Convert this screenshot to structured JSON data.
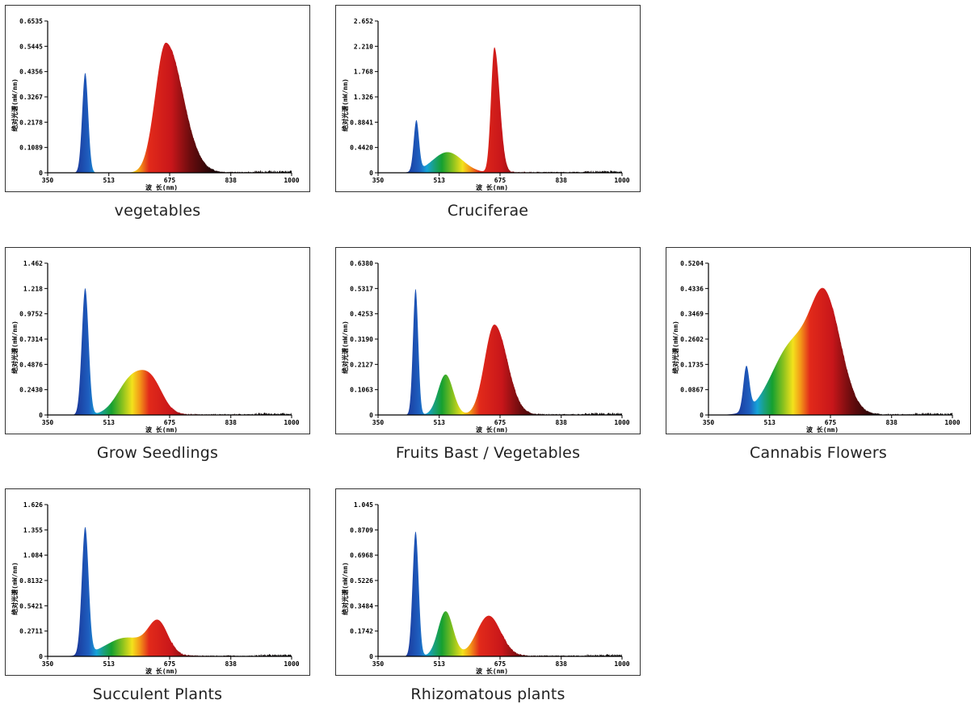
{
  "axes": {
    "xlabel": "波 长(nm)",
    "ylabel": "绝对光谱(mW/nm)",
    "x_ticks": [
      350,
      513,
      675,
      838,
      1000
    ],
    "xlim": [
      350,
      1000
    ]
  },
  "chart_data": [
    {
      "type": "area",
      "title": "vegetables",
      "ylim": [
        0,
        0.6535
      ],
      "y_ticks": [
        "0",
        "0.1089",
        "0.2178",
        "0.3267",
        "0.4356",
        "0.5445",
        "0.6535"
      ],
      "peaks": [
        {
          "x": 450,
          "y": 0.43,
          "w": 8
        },
        {
          "x": 665,
          "y": 0.56,
          "w": 28,
          "wr": 45
        }
      ]
    },
    {
      "type": "area",
      "title": "Cruciferae",
      "ylim": [
        0,
        2.652
      ],
      "y_ticks": [
        "0",
        "0.4420",
        "0.8841",
        "1.326",
        "1.768",
        "2.210",
        "2.652"
      ],
      "peaks": [
        {
          "x": 452,
          "y": 0.88,
          "w": 7
        },
        {
          "x": 535,
          "y": 0.36,
          "w": 40
        },
        {
          "x": 660,
          "y": 2.19,
          "w": 9,
          "wr": 14
        }
      ]
    },
    {
      "type": "area",
      "title": "Grow Seedlings",
      "ylim": [
        0,
        1.462
      ],
      "y_ticks": [
        "0",
        "0.2430",
        "0.4876",
        "0.7314",
        "0.9752",
        "1.218",
        "1.462"
      ],
      "peaks": [
        {
          "x": 450,
          "y": 1.22,
          "w": 9
        },
        {
          "x": 575,
          "y": 0.35,
          "w": 38
        },
        {
          "x": 630,
          "y": 0.25,
          "w": 30
        }
      ]
    },
    {
      "type": "area",
      "title": "Fruits Bast / Vegetables",
      "ylim": [
        0,
        0.638
      ],
      "y_ticks": [
        "0",
        "0.1063",
        "0.2127",
        "0.3190",
        "0.4253",
        "0.5317",
        "0.6380"
      ],
      "peaks": [
        {
          "x": 450,
          "y": 0.53,
          "w": 7
        },
        {
          "x": 530,
          "y": 0.17,
          "w": 20
        },
        {
          "x": 660,
          "y": 0.38,
          "w": 26,
          "wr": 34
        }
      ]
    },
    {
      "type": "area",
      "title": "Cannabis Flowers",
      "ylim": [
        0,
        0.5204
      ],
      "y_ticks": [
        "0",
        "0.0867",
        "0.1735",
        "0.2602",
        "0.3469",
        "0.4336",
        "0.5204"
      ],
      "peaks": [
        {
          "x": 451,
          "y": 0.15,
          "w": 8
        },
        {
          "x": 575,
          "y": 0.24,
          "w": 55
        },
        {
          "x": 663,
          "y": 0.36,
          "w": 38,
          "wr": 42
        }
      ]
    },
    {
      "type": "area",
      "title": "Succulent Plants",
      "ylim": [
        0,
        1.626
      ],
      "y_ticks": [
        "0",
        "0.2711",
        "0.5421",
        "0.8132",
        "1.084",
        "1.355",
        "1.626"
      ],
      "peaks": [
        {
          "x": 450,
          "y": 1.36,
          "w": 9
        },
        {
          "x": 560,
          "y": 0.2,
          "w": 55
        },
        {
          "x": 645,
          "y": 0.33,
          "w": 26
        }
      ]
    },
    {
      "type": "area",
      "title": "Rhizomatous plants",
      "ylim": [
        0,
        1.045
      ],
      "y_ticks": [
        "0",
        "0.1742",
        "0.3484",
        "0.5226",
        "0.6968",
        "0.8709",
        "1.045"
      ],
      "peaks": [
        {
          "x": 450,
          "y": 0.86,
          "w": 8
        },
        {
          "x": 530,
          "y": 0.31,
          "w": 20
        },
        {
          "x": 645,
          "y": 0.28,
          "w": 32
        }
      ]
    }
  ],
  "colors": {
    "frame": "#333333",
    "spectrum_stops": [
      {
        "nm": 380,
        "c": "#1a1a6b"
      },
      {
        "nm": 430,
        "c": "#1b3ea0"
      },
      {
        "nm": 460,
        "c": "#1e5fc0"
      },
      {
        "nm": 480,
        "c": "#15a3d8"
      },
      {
        "nm": 500,
        "c": "#1aa07a"
      },
      {
        "nm": 520,
        "c": "#15a030"
      },
      {
        "nm": 550,
        "c": "#8cc21e"
      },
      {
        "nm": 575,
        "c": "#f3e21c"
      },
      {
        "nm": 595,
        "c": "#f39a18"
      },
      {
        "nm": 620,
        "c": "#e22a1a"
      },
      {
        "nm": 680,
        "c": "#c8161a"
      },
      {
        "nm": 730,
        "c": "#6b0c0e"
      },
      {
        "nm": 790,
        "c": "#1e0506"
      },
      {
        "nm": 1000,
        "c": "#000000"
      }
    ]
  }
}
